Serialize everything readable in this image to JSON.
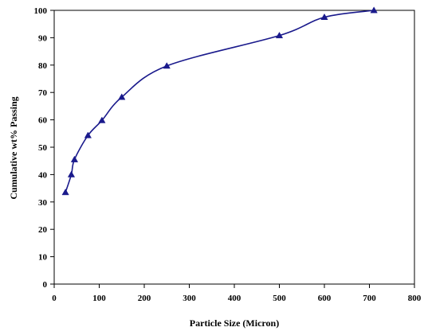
{
  "chart_data": {
    "type": "line",
    "title": "",
    "xlabel": "Particle Size (Micron)",
    "ylabel": "Cumulative wt% Passing",
    "xlim": [
      0,
      800
    ],
    "ylim": [
      0,
      100
    ],
    "xticks": [
      0,
      100,
      200,
      300,
      400,
      500,
      600,
      700,
      800
    ],
    "yticks": [
      0,
      10,
      20,
      30,
      40,
      50,
      60,
      70,
      80,
      90,
      100
    ],
    "grid": false,
    "legend": "none",
    "marker": "triangle",
    "series": [
      {
        "x": [
          25,
          38,
          45,
          75,
          106,
          150,
          250,
          500,
          600,
          710
        ],
        "y": [
          33.5,
          40,
          45.5,
          54.3,
          59.8,
          68.3,
          79.7,
          90.8,
          97.5,
          100
        ]
      }
    ],
    "colors": {
      "line": "#1a1a8c",
      "marker": "#1a1a8c",
      "axis": "#000000"
    }
  }
}
